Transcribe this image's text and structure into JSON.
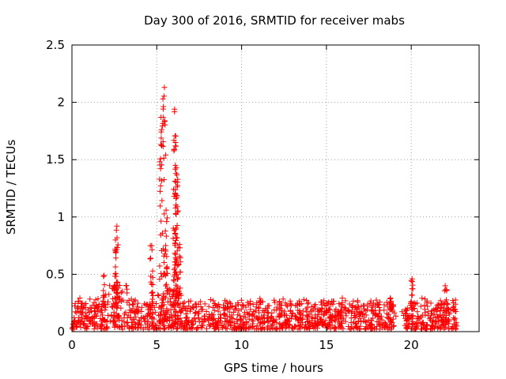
{
  "chart_data": {
    "type": "scatter",
    "title": "Day 300 of 2016, SRMTID for receiver mabs",
    "xlabel": "GPS time / hours",
    "ylabel": "SRMTID / TECUs",
    "xlim": [
      0,
      24
    ],
    "ylim": [
      0,
      2.5
    ],
    "x_ticks": [
      0,
      5,
      10,
      15,
      20
    ],
    "x_tick_labels": [
      "0",
      "5",
      "10",
      "15",
      "20"
    ],
    "y_ticks": [
      0,
      0.5,
      1,
      1.5,
      2,
      2.5
    ],
    "y_tick_labels": [
      "0",
      "0.5",
      "1",
      "1.5",
      "2",
      "2.5"
    ],
    "grid": true,
    "marker": "+",
    "color": "#ff0000",
    "data_range_hours": [
      0,
      22.7
    ],
    "baseline_band": [
      0.02,
      0.35
    ],
    "spikes": [
      {
        "x": 2.65,
        "ymax": 0.92
      },
      {
        "x": 2.55,
        "ymax": 0.72
      },
      {
        "x": 4.7,
        "ymax": 0.75
      },
      {
        "x": 5.25,
        "ymax": 1.87
      },
      {
        "x": 5.45,
        "ymax": 2.13
      },
      {
        "x": 5.55,
        "ymax": 1.06
      },
      {
        "x": 6.05,
        "ymax": 1.94
      },
      {
        "x": 6.1,
        "ymax": 1.62
      },
      {
        "x": 6.15,
        "ymax": 1.43
      },
      {
        "x": 6.2,
        "ymax": 1.09
      },
      {
        "x": 6.35,
        "ymax": 0.76
      },
      {
        "x": 1.9,
        "ymax": 0.49
      },
      {
        "x": 20.05,
        "ymax": 0.46
      },
      {
        "x": 22.0,
        "ymax": 0.4
      }
    ]
  }
}
